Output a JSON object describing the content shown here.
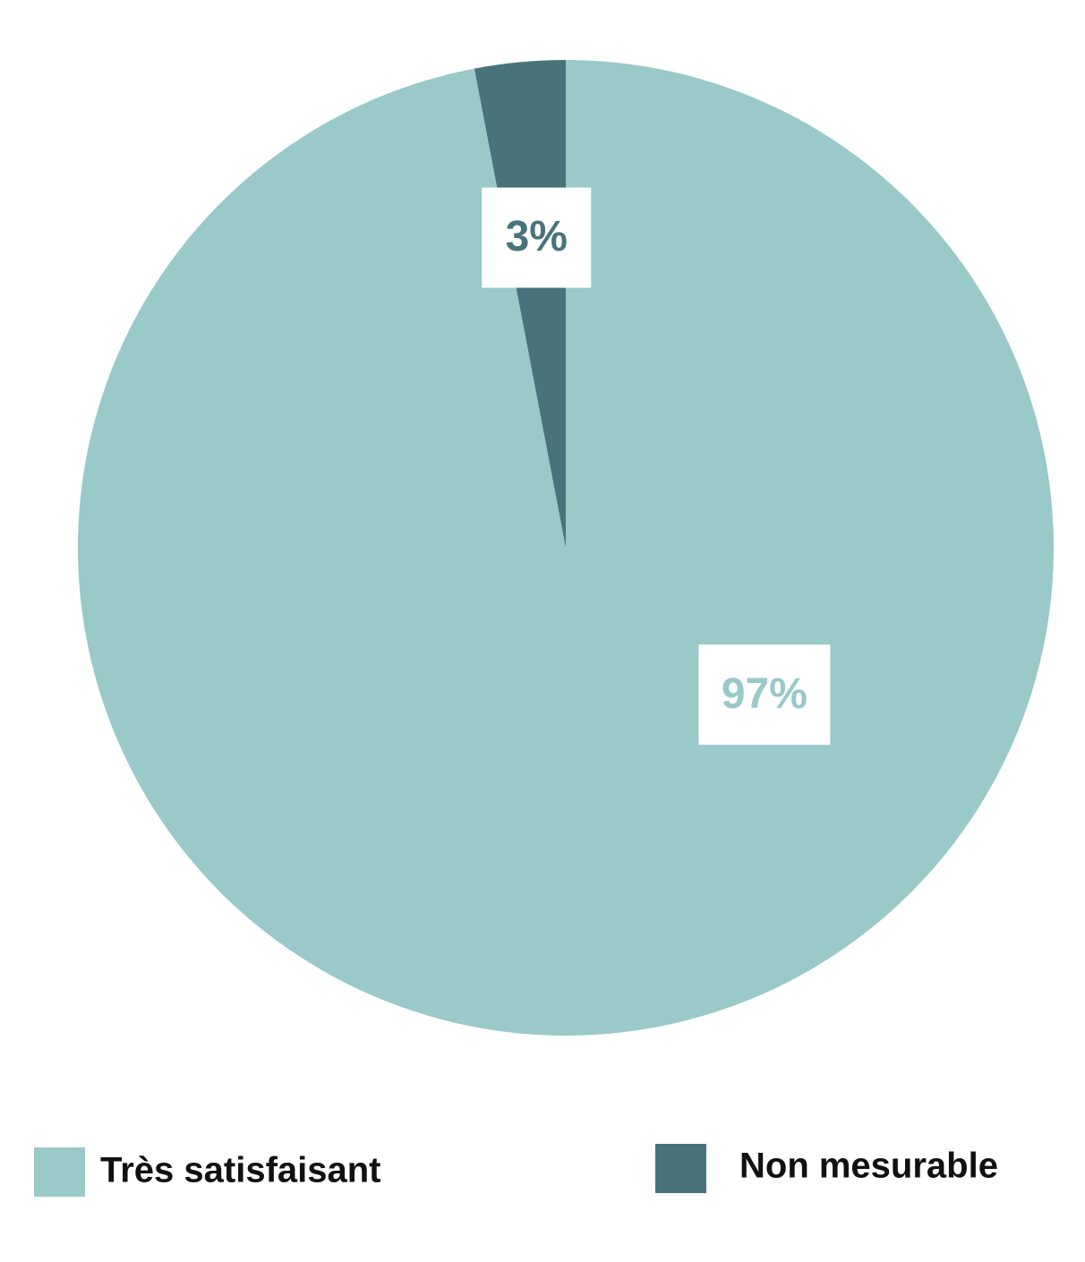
{
  "chart_data": {
    "type": "pie",
    "categories": [
      "Très satisfaisant",
      "Non mesurable"
    ],
    "values": [
      97,
      3
    ],
    "value_labels": [
      "97%",
      "3%"
    ],
    "colors": [
      "#99c9c9",
      "#48737b"
    ]
  }
}
